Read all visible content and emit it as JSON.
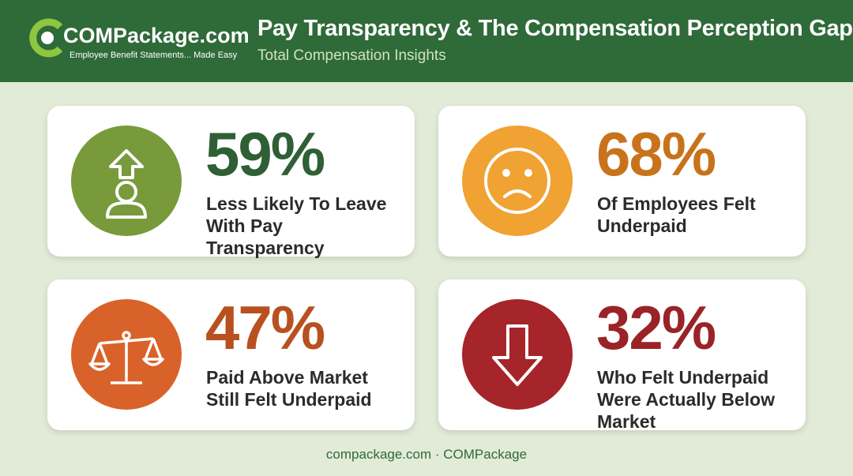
{
  "header": {
    "logo": {
      "name": "COMPackage.com",
      "tagline": "Employee Benefit Statements... Made Easy"
    },
    "title": "Pay Transparency & The Compensation Perception Gap",
    "subtitle": "Total Compensation Insights"
  },
  "cards": [
    {
      "stat": "59%",
      "label": "Less Likely To Leave With Pay Transparency"
    },
    {
      "stat": "68%",
      "label": "Of Employees Felt Underpaid"
    },
    {
      "stat": "47%",
      "label": "Paid Above Market Still Felt Underpaid"
    },
    {
      "stat": "32%",
      "label": "Who Felt Underpaid Were Actually Below Market"
    }
  ],
  "footer": "compackage.com · COMPackage"
}
